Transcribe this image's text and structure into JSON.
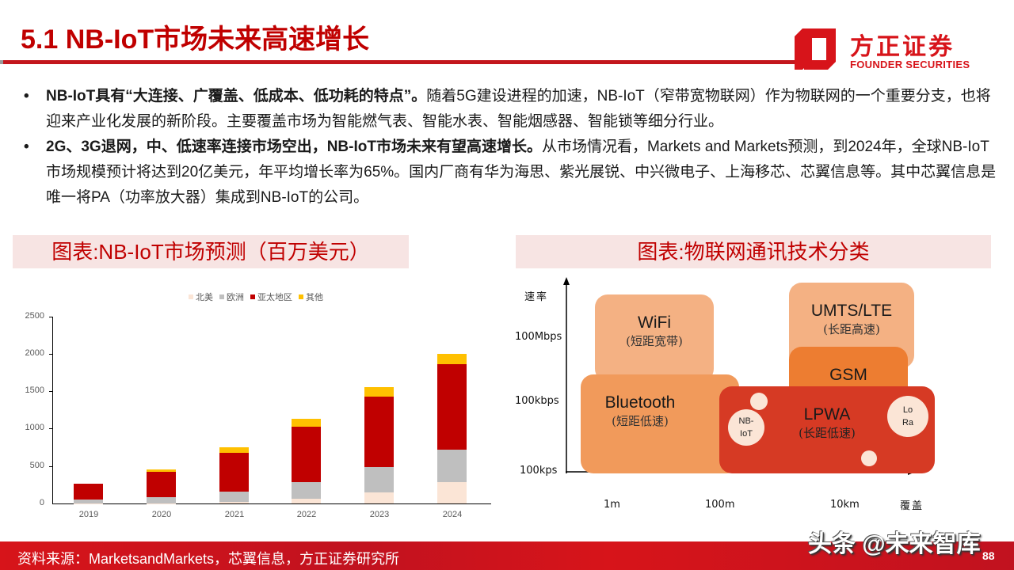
{
  "header": {
    "title": "5.1 NB-IoT市场未来高速增长",
    "logo_cn": "方正证券",
    "logo_en": "FOUNDER SECURITIES",
    "brand_color": "#d7141a"
  },
  "bullets": [
    {
      "bold": "NB-IoT具有“大连接、广覆盖、低成本、低功耗的特点”。",
      "text": "随着5G建设进程的加速，NB-IoT（窄带宽物联网）作为物联网的一个重要分支，也将迎来产业化发展的新阶段。主要覆盖市场为智能燃气表、智能水表、智能烟感器、智能锁等细分行业。"
    },
    {
      "bold": "2G、3G退网，中、低速率连接市场空出，NB-IoT市场未来有望高速增长。",
      "text": "从市场情况看，Markets and Markets预测，到2024年，全球NB-IoT市场规模预计将达到20亿美元，年平均增长率为65%。国内厂商有华为海思、紫光展锐、中兴微电子、上海移芯、芯翼信息等。其中芯翼信息是唯一将PA（功率放大器）集成到NB-IoT的公司。"
    }
  ],
  "left_panel": {
    "title": "图表:NB-IoT市场预测（百万美元）"
  },
  "right_panel": {
    "title": "图表:物联网通讯技术分类"
  },
  "chart_data": {
    "type": "bar",
    "stacked": true,
    "title": "图表:NB-IoT市场预测（百万美元）",
    "categories": [
      "2019",
      "2020",
      "2021",
      "2022",
      "2023",
      "2024"
    ],
    "series": [
      {
        "name": "北美",
        "color": "#fbe5d6",
        "values": [
          5,
          5,
          25,
          60,
          145,
          290
        ]
      },
      {
        "name": "欧洲",
        "color": "#bfbfbf",
        "values": [
          50,
          80,
          135,
          230,
          340,
          430
        ]
      },
      {
        "name": "亚太地区",
        "color": "#c00000",
        "values": [
          215,
          335,
          520,
          735,
          950,
          1140
        ]
      },
      {
        "name": "其他",
        "color": "#ffc000",
        "values": [
          0,
          35,
          70,
          105,
          120,
          145
        ]
      }
    ],
    "xlabel": "",
    "ylabel": "",
    "ylim": [
      0,
      2500
    ],
    "yticks": [
      "0",
      "500",
      "1000",
      "1500",
      "2000",
      "2500"
    ],
    "grid": false,
    "legend_position": "top"
  },
  "diagram": {
    "y_axis_label": "速率",
    "x_axis_label": "覆盖",
    "y_ticks": [
      "100Mbps",
      "100kbps",
      "100kps"
    ],
    "x_ticks": [
      "1m",
      "100m",
      "10km"
    ],
    "boxes": [
      {
        "name": "WiFi",
        "sub": "(短距宽带)",
        "color": "#f4b183"
      },
      {
        "name": "UMTS/LTE",
        "sub": "(长距高速)",
        "color": "#f4b183"
      },
      {
        "name": "GSM",
        "sub": "",
        "color": "#ed7d31"
      },
      {
        "name": "Bluetooth",
        "sub": "(短距低速)",
        "color": "#f19a5b"
      },
      {
        "name": "LPWA",
        "sub": "(长距低速)",
        "color": "#d63a24"
      }
    ],
    "circles": [
      {
        "label_line1": "NB-",
        "label_line2": "IoT"
      },
      {
        "label_line1": "Lo",
        "label_line2": "Ra"
      }
    ]
  },
  "footer": {
    "source": "资料来源：MarketsandMarkets，芯翼信息，方正证券研究所",
    "watermark": "头条 @未来智库",
    "page_number": "88"
  }
}
